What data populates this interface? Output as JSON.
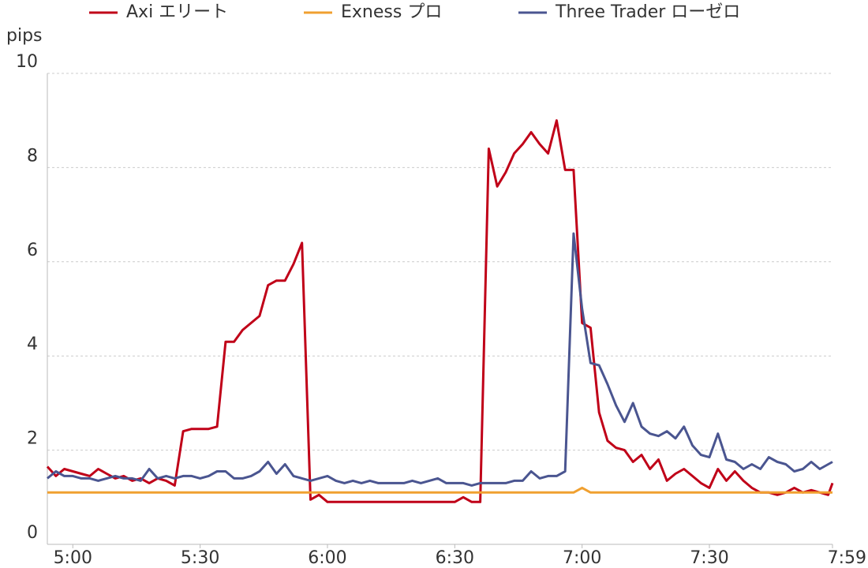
{
  "chart_data": {
    "type": "line",
    "y_label": "pips",
    "x": [
      -6,
      -4,
      -2,
      0,
      2,
      4,
      6,
      8,
      10,
      12,
      14,
      16,
      18,
      20,
      22,
      24,
      26,
      28,
      30,
      32,
      34,
      36,
      38,
      40,
      42,
      44,
      46,
      48,
      50,
      52,
      54,
      56,
      58,
      60,
      62,
      64,
      66,
      68,
      70,
      72,
      74,
      76,
      78,
      80,
      82,
      84,
      86,
      88,
      90,
      92,
      94,
      96,
      98,
      100,
      102,
      104,
      106,
      108,
      110,
      112,
      114,
      116,
      118,
      120,
      122,
      124,
      126,
      128,
      130,
      132,
      134,
      136,
      138,
      140,
      142,
      144,
      146,
      148,
      150,
      152,
      154,
      156,
      158,
      160,
      162,
      164,
      166,
      168,
      170,
      172,
      174,
      176,
      178,
      179
    ],
    "xlim": [
      -6,
      179
    ],
    "xticks": [
      {
        "value": 0,
        "label": "5:00"
      },
      {
        "value": 30,
        "label": "5:30"
      },
      {
        "value": 60,
        "label": "6:00"
      },
      {
        "value": 90,
        "label": "6:30"
      },
      {
        "value": 120,
        "label": "7:00"
      },
      {
        "value": 150,
        "label": "7:30"
      },
      {
        "value": 179,
        "label": "7:59"
      }
    ],
    "ylim": [
      0,
      10
    ],
    "yticks": [
      0,
      2,
      4,
      6,
      8,
      10
    ],
    "grid": true,
    "series": [
      {
        "name": "Axi エリート",
        "color": "#c00018",
        "values": [
          1.65,
          1.45,
          1.6,
          1.55,
          1.5,
          1.45,
          1.6,
          1.5,
          1.4,
          1.45,
          1.35,
          1.4,
          1.3,
          1.4,
          1.35,
          1.25,
          2.4,
          2.45,
          2.45,
          2.45,
          2.5,
          4.3,
          4.3,
          4.55,
          4.7,
          4.85,
          5.5,
          5.6,
          5.6,
          5.95,
          6.4,
          0.95,
          1.05,
          0.9,
          0.9,
          0.9,
          0.9,
          0.9,
          0.9,
          0.9,
          0.9,
          0.9,
          0.9,
          0.9,
          0.9,
          0.9,
          0.9,
          0.9,
          0.9,
          1.0,
          0.9,
          0.9,
          8.4,
          7.6,
          7.9,
          8.3,
          8.5,
          8.75,
          8.5,
          8.3,
          9.0,
          7.95,
          7.95,
          4.7,
          4.6,
          2.8,
          2.2,
          2.05,
          2.0,
          1.75,
          1.9,
          1.6,
          1.8,
          1.35,
          1.5,
          1.6,
          1.45,
          1.3,
          1.2,
          1.6,
          1.35,
          1.55,
          1.35,
          1.2,
          1.1,
          1.1,
          1.05,
          1.1,
          1.2,
          1.1,
          1.15,
          1.1,
          1.05,
          1.3
        ]
      },
      {
        "name": "Exness プロ",
        "color": "#f0a030",
        "values": [
          1.1,
          1.1,
          1.1,
          1.1,
          1.1,
          1.1,
          1.1,
          1.1,
          1.1,
          1.1,
          1.1,
          1.1,
          1.1,
          1.1,
          1.1,
          1.1,
          1.1,
          1.1,
          1.1,
          1.1,
          1.1,
          1.1,
          1.1,
          1.1,
          1.1,
          1.1,
          1.1,
          1.1,
          1.1,
          1.1,
          1.1,
          1.1,
          1.1,
          1.1,
          1.1,
          1.1,
          1.1,
          1.1,
          1.1,
          1.1,
          1.1,
          1.1,
          1.1,
          1.1,
          1.1,
          1.1,
          1.1,
          1.1,
          1.1,
          1.1,
          1.1,
          1.1,
          1.1,
          1.1,
          1.1,
          1.1,
          1.1,
          1.1,
          1.1,
          1.1,
          1.1,
          1.1,
          1.1,
          1.2,
          1.1,
          1.1,
          1.1,
          1.1,
          1.1,
          1.1,
          1.1,
          1.1,
          1.1,
          1.1,
          1.1,
          1.1,
          1.1,
          1.1,
          1.1,
          1.1,
          1.1,
          1.1,
          1.1,
          1.1,
          1.1,
          1.1,
          1.1,
          1.1,
          1.1,
          1.1,
          1.1,
          1.1,
          1.1,
          1.1
        ]
      },
      {
        "name": "Three Trader ローゼロ",
        "color": "#4a5590",
        "values": [
          1.4,
          1.55,
          1.45,
          1.45,
          1.4,
          1.4,
          1.35,
          1.4,
          1.45,
          1.4,
          1.4,
          1.35,
          1.6,
          1.4,
          1.45,
          1.4,
          1.45,
          1.45,
          1.4,
          1.45,
          1.55,
          1.55,
          1.4,
          1.4,
          1.45,
          1.55,
          1.75,
          1.5,
          1.7,
          1.45,
          1.4,
          1.35,
          1.4,
          1.45,
          1.35,
          1.3,
          1.35,
          1.3,
          1.35,
          1.3,
          1.3,
          1.3,
          1.3,
          1.35,
          1.3,
          1.35,
          1.4,
          1.3,
          1.3,
          1.3,
          1.25,
          1.3,
          1.3,
          1.3,
          1.3,
          1.35,
          1.35,
          1.55,
          1.4,
          1.45,
          1.45,
          1.55,
          6.6,
          5.0,
          3.85,
          3.8,
          3.4,
          2.95,
          2.6,
          3.0,
          2.5,
          2.35,
          2.3,
          2.4,
          2.25,
          2.5,
          2.1,
          1.9,
          1.85,
          2.35,
          1.8,
          1.75,
          1.6,
          1.7,
          1.6,
          1.85,
          1.75,
          1.7,
          1.55,
          1.6,
          1.75,
          1.6,
          1.7,
          1.75
        ]
      }
    ]
  }
}
